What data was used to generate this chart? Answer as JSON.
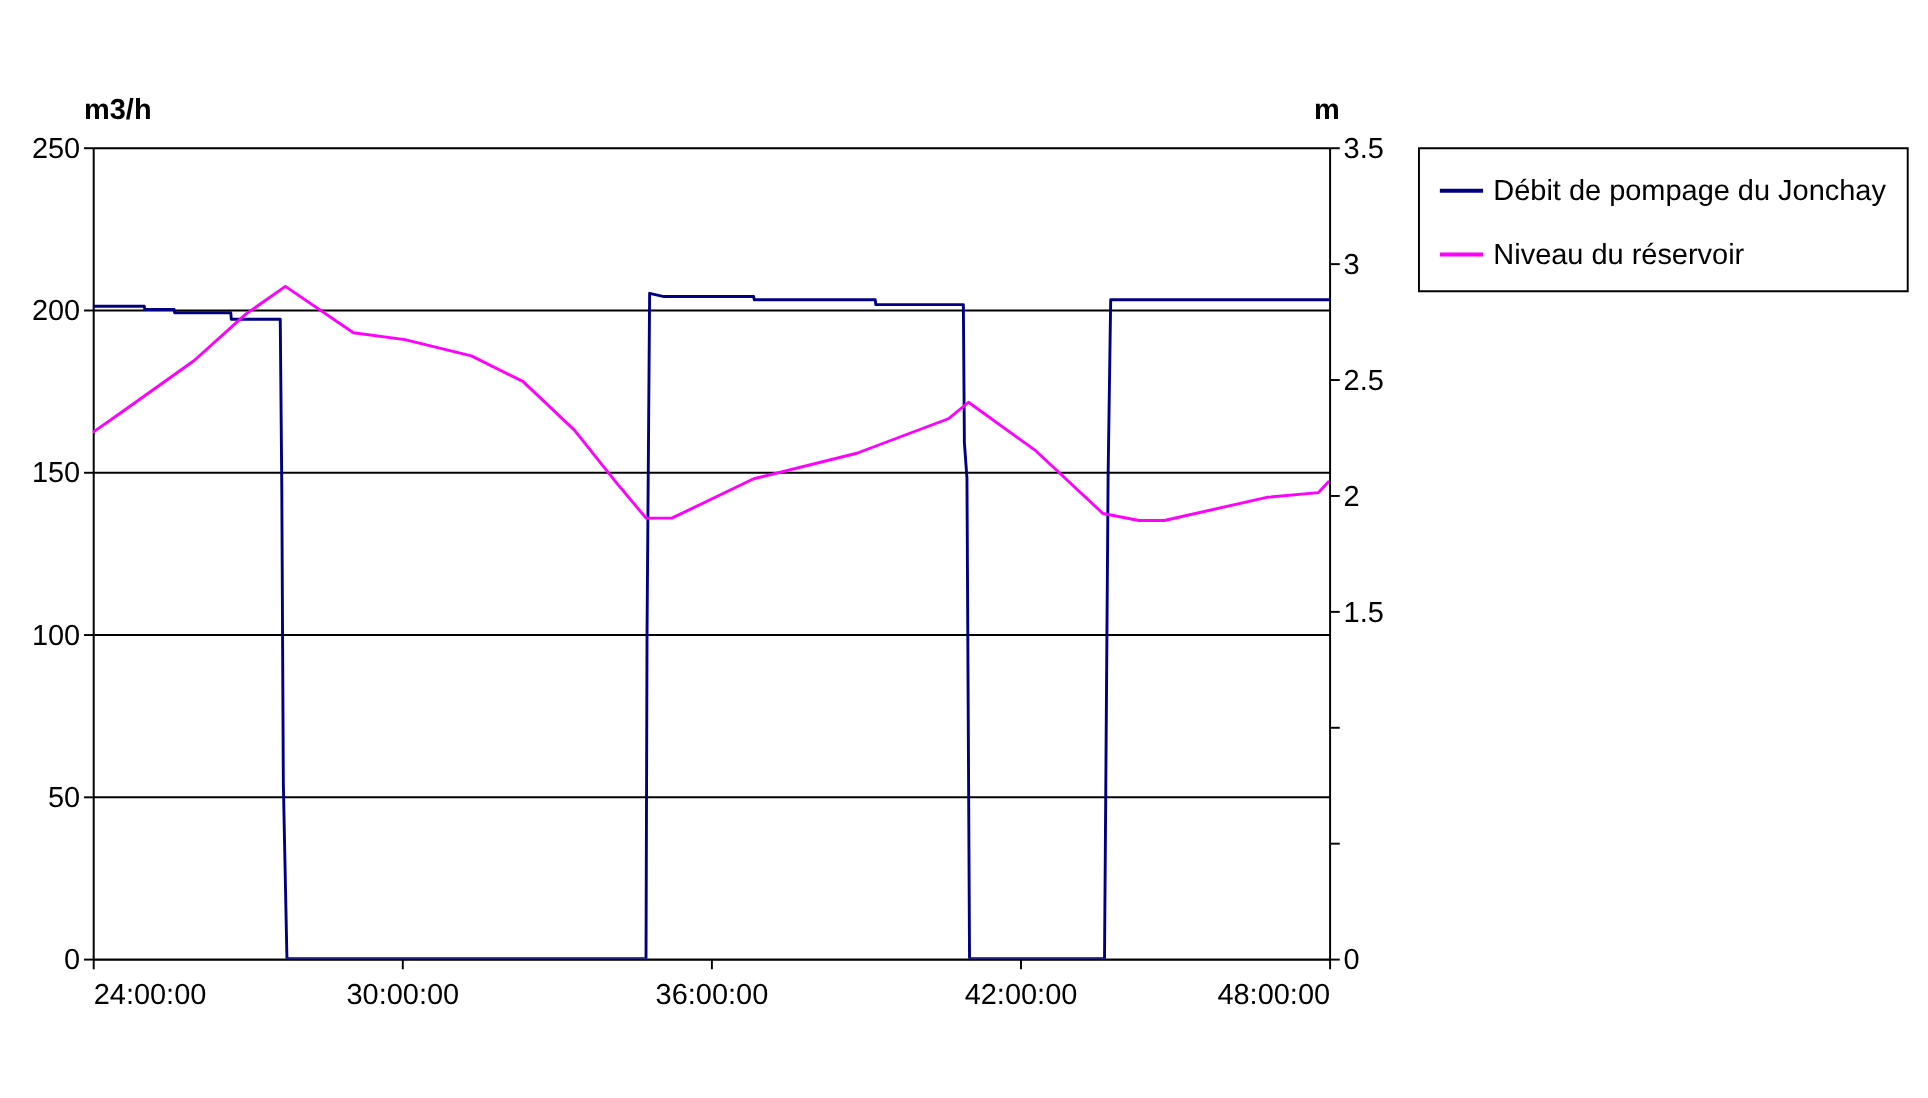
{
  "chart_data": {
    "type": "line",
    "xlabel": null,
    "ylabel": "m3/h",
    "y2label": "m",
    "xlim": [
      24,
      48
    ],
    "xticks": [
      {
        "value": 24,
        "label": "24:00:00"
      },
      {
        "value": 30,
        "label": "30:00:00"
      },
      {
        "value": 36,
        "label": "36:00:00"
      },
      {
        "value": 42,
        "label": "42:00:00"
      },
      {
        "value": 48,
        "label": "48:00:00"
      }
    ],
    "ylim": [
      0,
      250
    ],
    "yticks": [
      0,
      50,
      100,
      150,
      200,
      250
    ],
    "y2lim": [
      0,
      3.5
    ],
    "y2ticks": [
      0,
      {
        "value": 0.5,
        "label": null
      },
      {
        "value": 1,
        "label": null
      },
      1.5,
      2,
      2.5,
      3,
      3.5
    ],
    "grid": "y",
    "legend": "right",
    "marker": "none",
    "line_style": "solid",
    "series": [
      {
        "name": "Débit de pompage du Jonchay",
        "color": "#000080",
        "x": [
          24,
          25,
          25.01,
          25.58,
          25.59,
          26.68,
          26.69,
          27.64,
          27.67,
          27.7,
          27.77,
          34.74,
          34.76,
          34.81,
          35.09,
          36.83,
          36.84,
          39.19,
          39.2,
          40.9,
          40.92,
          40.97,
          41.02,
          43.64,
          43.71,
          43.76,
          48
        ],
        "values": [
          201,
          201,
          200,
          200,
          199,
          199,
          197,
          197,
          145,
          54,
          0,
          0,
          101,
          205,
          204,
          204,
          203,
          203,
          201.5,
          201.5,
          159,
          148,
          0,
          0,
          149,
          203,
          203
        ]
      },
      {
        "name": "Niveau du réservoir",
        "color": "#ff00ff",
        "axis": "y2",
        "x": [
          24,
          24.58,
          25.97,
          26.97,
          27.74,
          29.06,
          30.06,
          31.35,
          32.35,
          33.35,
          34.14,
          34.74,
          35.24,
          36.83,
          38.83,
          40.62,
          41.0,
          42.31,
          43.61,
          44.31,
          44.8,
          46.79,
          47.79,
          48
        ],
        "values": [
          2.27,
          2.36,
          2.58,
          2.78,
          2.9,
          2.7,
          2.67,
          2.6,
          2.49,
          2.28,
          2.06,
          1.9,
          1.9,
          2.07,
          2.18,
          2.33,
          2.4,
          2.19,
          1.92,
          1.89,
          1.89,
          1.99,
          2.01,
          2.06
        ]
      }
    ]
  }
}
